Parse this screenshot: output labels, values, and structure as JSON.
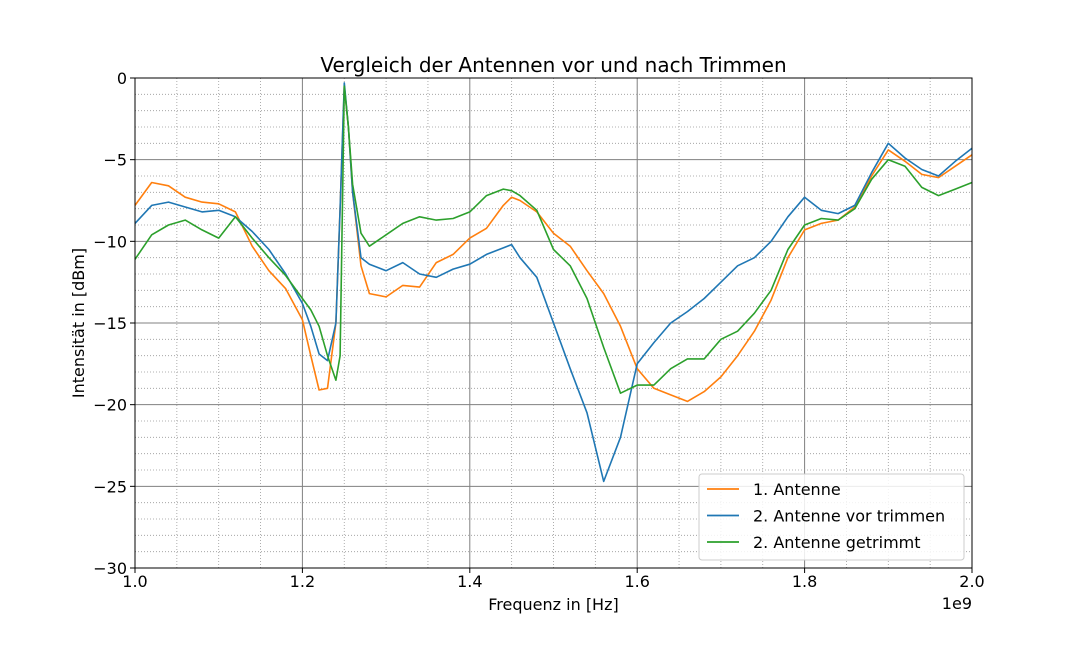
{
  "chart_data": {
    "type": "line",
    "title": "Vergleich der Antennen vor und nach Trimmen",
    "xlabel": "Frequenz in [Hz]",
    "ylabel": "Intensität in [dBm]",
    "x_offset_label": "1e9",
    "xlim": [
      1.0,
      2.0
    ],
    "ylim": [
      -30,
      0
    ],
    "x_ticks": [
      1.0,
      1.2,
      1.4,
      1.6,
      1.8,
      2.0
    ],
    "x_tick_labels": [
      "1.0",
      "1.2",
      "1.4",
      "1.6",
      "1.8",
      "2.0"
    ],
    "y_ticks": [
      0,
      -5,
      -10,
      -15,
      -20,
      -25,
      -30
    ],
    "y_tick_labels": [
      "0",
      "−5",
      "−10",
      "−15",
      "−20",
      "−25",
      "−30"
    ],
    "grid": true,
    "legend_position": "lower-right",
    "x": [
      1.0,
      1.02,
      1.04,
      1.06,
      1.08,
      1.1,
      1.12,
      1.14,
      1.16,
      1.18,
      1.2,
      1.21,
      1.22,
      1.23,
      1.24,
      1.245,
      1.25,
      1.255,
      1.26,
      1.27,
      1.28,
      1.3,
      1.32,
      1.34,
      1.36,
      1.38,
      1.4,
      1.42,
      1.44,
      1.45,
      1.46,
      1.48,
      1.5,
      1.52,
      1.54,
      1.56,
      1.58,
      1.6,
      1.62,
      1.64,
      1.66,
      1.68,
      1.7,
      1.72,
      1.74,
      1.76,
      1.78,
      1.8,
      1.82,
      1.84,
      1.86,
      1.88,
      1.9,
      1.92,
      1.94,
      1.96,
      1.98,
      2.0
    ],
    "series": [
      {
        "name": "1. Antenne",
        "color": "#ff7f0e",
        "values": [
          -7.8,
          -6.4,
          -6.6,
          -7.3,
          -7.6,
          -7.7,
          -8.2,
          -10.3,
          -11.8,
          -12.9,
          -14.8,
          -17.0,
          -19.1,
          -19.0,
          -15.0,
          -8.0,
          -0.5,
          -3.0,
          -7.0,
          -11.5,
          -13.2,
          -13.4,
          -12.7,
          -12.8,
          -11.3,
          -10.8,
          -9.8,
          -9.2,
          -7.8,
          -7.3,
          -7.5,
          -8.2,
          -9.5,
          -10.3,
          -11.8,
          -13.2,
          -15.2,
          -17.8,
          -19.0,
          -19.4,
          -19.8,
          -19.2,
          -18.3,
          -17.0,
          -15.5,
          -13.6,
          -11.0,
          -9.3,
          -8.9,
          -8.7,
          -7.9,
          -6.0,
          -4.4,
          -5.1,
          -5.9,
          -6.1,
          -5.4,
          -4.7
        ]
      },
      {
        "name": "2. Antenne vor trimmen",
        "color": "#1f77b4",
        "values": [
          -8.9,
          -7.8,
          -7.6,
          -7.9,
          -8.2,
          -8.1,
          -8.5,
          -9.4,
          -10.5,
          -12.0,
          -13.8,
          -15.2,
          -16.9,
          -17.3,
          -15.0,
          -8.0,
          -0.3,
          -3.0,
          -7.0,
          -11.0,
          -11.4,
          -11.8,
          -11.3,
          -12.0,
          -12.2,
          -11.7,
          -11.4,
          -10.8,
          -10.4,
          -10.2,
          -11.0,
          -12.2,
          -15.0,
          -17.8,
          -20.5,
          -24.7,
          -22.0,
          -17.5,
          -16.2,
          -15.0,
          -14.3,
          -13.5,
          -12.5,
          -11.5,
          -11.0,
          -10.0,
          -8.5,
          -7.3,
          -8.1,
          -8.3,
          -7.8,
          -5.8,
          -4.0,
          -4.9,
          -5.6,
          -6.0,
          -5.1,
          -4.3
        ]
      },
      {
        "name": "2. Antenne getrimmt",
        "color": "#2ca02c",
        "values": [
          -11.1,
          -9.6,
          -9.0,
          -8.7,
          -9.3,
          -9.8,
          -8.5,
          -9.8,
          -11.0,
          -12.1,
          -13.5,
          -14.2,
          -15.2,
          -17.0,
          -18.5,
          -17.0,
          -0.5,
          -3.0,
          -6.5,
          -9.5,
          -10.3,
          -9.6,
          -8.9,
          -8.5,
          -8.7,
          -8.6,
          -8.2,
          -7.2,
          -6.8,
          -6.9,
          -7.2,
          -8.1,
          -10.5,
          -11.5,
          -13.5,
          -16.5,
          -19.3,
          -18.8,
          -18.8,
          -17.8,
          -17.2,
          -17.2,
          -16.0,
          -15.5,
          -14.4,
          -13.0,
          -10.5,
          -9.0,
          -8.6,
          -8.7,
          -8.0,
          -6.2,
          -5.0,
          -5.4,
          -6.7,
          -7.2,
          -6.8,
          -6.4
        ]
      }
    ]
  }
}
